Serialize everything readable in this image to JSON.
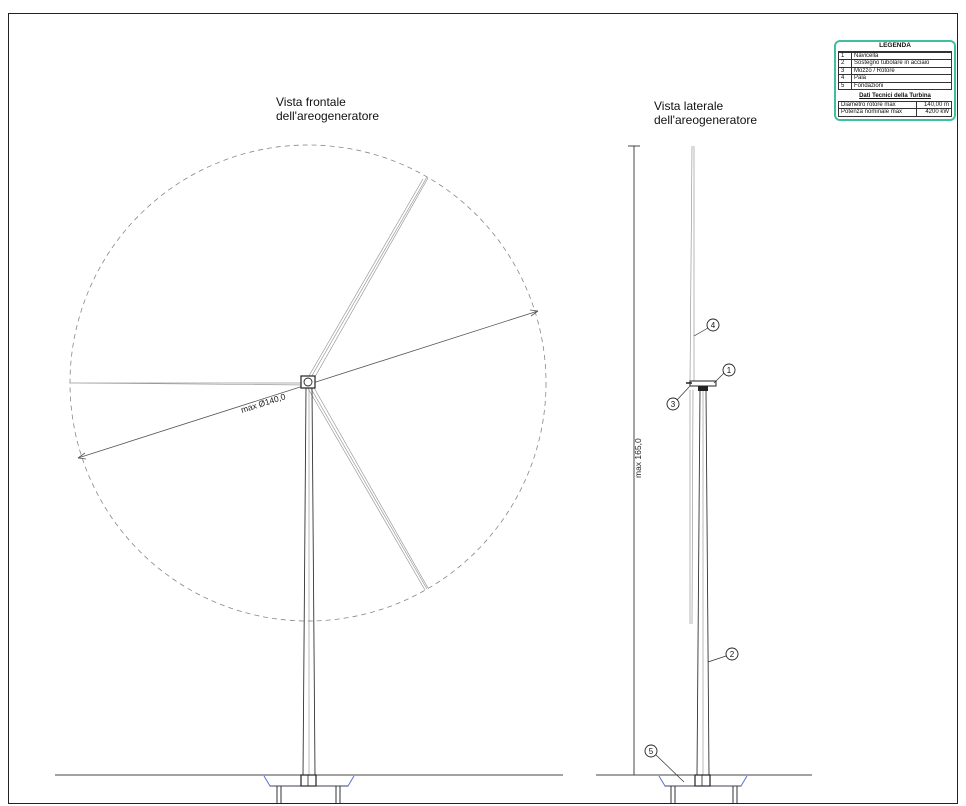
{
  "front_view": {
    "title_line1": "Vista frontale",
    "title_line2": "dell'areogeneratore",
    "diameter_label": "max Ø140,0"
  },
  "side_view": {
    "title_line1": "Vista laterale",
    "title_line2": "dell'areogeneratore",
    "height_label": "max 165,0",
    "callouts": [
      "1",
      "2",
      "3",
      "4",
      "5"
    ]
  },
  "legend": {
    "title": "LEGENDA",
    "items": [
      {
        "num": "1",
        "label": "Navicella"
      },
      {
        "num": "2",
        "label": "Sostegno tubolare in acciaio"
      },
      {
        "num": "3",
        "label": "Mozzo / Rotore"
      },
      {
        "num": "4",
        "label": "Pala"
      },
      {
        "num": "5",
        "label": "Fondazioni"
      }
    ],
    "tech_title": "Dati Tecnici della Turbina",
    "tech_rows": [
      {
        "label": "Diametro rotore max",
        "value": "140,00 m"
      },
      {
        "label": "Potenza nominale max",
        "value": "4200 kW"
      }
    ],
    "border_color": "#3fbf9f"
  }
}
